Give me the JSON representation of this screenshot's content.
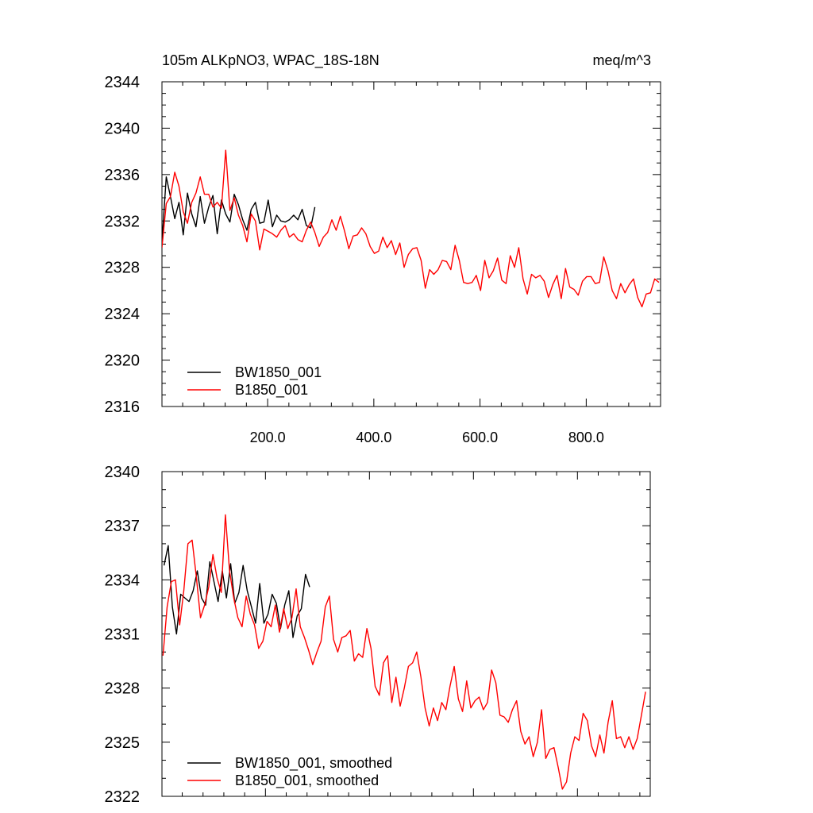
{
  "figure": {
    "title_left": "105m ALKpNO3, WPAC_18S-18N",
    "title_right": "meq/m^3"
  },
  "colors": {
    "BW1850_001": "#000000",
    "B1850_001": "#ff0000"
  },
  "chart_data": [
    {
      "type": "line",
      "title": "105m ALKpNO3, WPAC_18S-18N",
      "units": "meq/m^3",
      "xlim": [
        1,
        940
      ],
      "ylim": [
        2316,
        2344
      ],
      "xticks": [
        200,
        400,
        600,
        800
      ],
      "xtick_labels": [
        "200.0",
        "400.0",
        "600.0",
        "800.0"
      ],
      "yticks": [
        2316,
        2320,
        2324,
        2328,
        2332,
        2336,
        2340,
        2344
      ],
      "ytick_labels": [
        "2316",
        "2320",
        "2324",
        "2328",
        "2332",
        "2336",
        "2340",
        "2344"
      ],
      "legend_position": "bottom-left",
      "series": [
        {
          "name": "BW1850_001",
          "color": "#000000",
          "x_start": 1,
          "x_step": 8,
          "values": [
            2330.2,
            2335.8,
            2334.1,
            2332.2,
            2333.6,
            2330.8,
            2334.4,
            2332.6,
            2331.5,
            2334.1,
            2331.8,
            2333.2,
            2334.2,
            2330.9,
            2333.8,
            2332.6,
            2331.9,
            2334.3,
            2333.4,
            2332.1,
            2331.2,
            2333.0,
            2333.6,
            2331.8,
            2331.9,
            2333.8,
            2331.5,
            2332.5,
            2332.0,
            2331.9,
            2332.1,
            2332.5,
            2332.1,
            2333.0,
            2331.6,
            2331.4,
            2333.2
          ]
        },
        {
          "name": "B1850_001",
          "color": "#ff0000",
          "x_start": 1,
          "x_step": 8,
          "values": [
            2329.7,
            2333.5,
            2334.1,
            2336.2,
            2335.0,
            2332.8,
            2331.8,
            2333.6,
            2334.4,
            2335.8,
            2334.3,
            2334.3,
            2333.2,
            2333.6,
            2333.1,
            2338.1,
            2332.9,
            2334.0,
            2332.5,
            2331.6,
            2330.2,
            2332.6,
            2332.0,
            2329.5,
            2331.3,
            2331.1,
            2330.9,
            2330.6,
            2331.2,
            2331.6,
            2330.6,
            2330.9,
            2330.4,
            2330.2,
            2331.2,
            2331.9,
            2331.0,
            2329.8,
            2330.6,
            2331.0,
            2332.1,
            2331.2,
            2332.4,
            2331.1,
            2329.6,
            2330.7,
            2330.8,
            2331.4,
            2330.9,
            2329.8,
            2329.2,
            2329.4,
            2330.6,
            2329.7,
            2330.3,
            2329.1,
            2330.1,
            2328.0,
            2329.1,
            2329.6,
            2329.7,
            2328.6,
            2326.2,
            2327.8,
            2327.4,
            2327.8,
            2328.6,
            2328.5,
            2327.8,
            2329.9,
            2328.6,
            2326.7,
            2326.6,
            2326.7,
            2327.3,
            2326.0,
            2328.6,
            2327.1,
            2327.7,
            2328.8,
            2326.9,
            2326.6,
            2329.0,
            2328.0,
            2329.7,
            2327.0,
            2325.7,
            2327.4,
            2327.1,
            2327.3,
            2326.8,
            2325.4,
            2326.5,
            2327.3,
            2325.3,
            2327.9,
            2326.3,
            2326.1,
            2325.6,
            2326.8,
            2327.2,
            2327.2,
            2326.6,
            2326.7,
            2328.9,
            2327.7,
            2326.0,
            2325.3,
            2326.6,
            2325.8,
            2326.5,
            2327.0,
            2325.4,
            2324.6,
            2325.7,
            2325.8,
            2327.0,
            2326.7
          ]
        }
      ]
    },
    {
      "type": "line",
      "title": "",
      "xlim": [
        1,
        940
      ],
      "ylim": [
        2322,
        2340
      ],
      "yticks": [
        2322,
        2325,
        2328,
        2331,
        2334,
        2337,
        2340
      ],
      "ytick_labels": [
        "2322",
        "2325",
        "2328",
        "2331",
        "2334",
        "2337",
        "2340"
      ],
      "legend_position": "bottom-left",
      "series": [
        {
          "name": "BW1850_001, smoothed",
          "color": "#000000",
          "x_start": 5,
          "x_step": 8,
          "values": [
            2334.8,
            2335.9,
            2332.5,
            2331.0,
            2333.2,
            2333.0,
            2332.8,
            2333.4,
            2334.5,
            2333.0,
            2332.6,
            2335.0,
            2333.9,
            2332.8,
            2334.5,
            2333.0,
            2334.9,
            2332.7,
            2333.3,
            2334.8,
            2333.4,
            2332.5,
            2331.6,
            2333.8,
            2331.6,
            2332.1,
            2333.2,
            2332.7,
            2331.3,
            2332.6,
            2333.4,
            2330.8,
            2332.0,
            2332.4,
            2334.3,
            2333.6
          ]
        },
        {
          "name": "B1850_001, smoothed",
          "color": "#ff0000",
          "x_start": 3,
          "x_step": 8,
          "values": [
            2329.8,
            2332.5,
            2333.9,
            2334.0,
            2331.5,
            2333.4,
            2336.0,
            2336.2,
            2334.2,
            2331.9,
            2332.6,
            2333.6,
            2335.4,
            2334.1,
            2333.3,
            2337.6,
            2334.5,
            2333.0,
            2331.9,
            2331.4,
            2333.1,
            2332.1,
            2331.5,
            2330.2,
            2330.6,
            2331.7,
            2331.4,
            2332.6,
            2331.1,
            2332.4,
            2331.3,
            2331.9,
            2333.5,
            2331.4,
            2330.8,
            2330.1,
            2329.3,
            2330.0,
            2330.6,
            2332.5,
            2333.1,
            2330.7,
            2330.0,
            2330.8,
            2330.9,
            2331.2,
            2329.5,
            2329.9,
            2329.7,
            2331.3,
            2330.2,
            2328.1,
            2327.6,
            2329.4,
            2329.8,
            2327.2,
            2328.6,
            2327.0,
            2328.0,
            2329.2,
            2329.4,
            2330.0,
            2328.6,
            2326.9,
            2325.9,
            2326.9,
            2326.2,
            2327.2,
            2326.8,
            2328.1,
            2329.2,
            2327.4,
            2326.7,
            2328.4,
            2326.9,
            2327.3,
            2327.5,
            2326.8,
            2327.2,
            2329.0,
            2328.3,
            2326.5,
            2326.4,
            2326.1,
            2326.8,
            2327.3,
            2325.6,
            2324.9,
            2325.3,
            2324.2,
            2325.0,
            2326.8,
            2324.1,
            2324.6,
            2324.7,
            2323.6,
            2322.4,
            2322.8,
            2324.4,
            2325.3,
            2325.1,
            2326.6,
            2326.2,
            2324.8,
            2324.2,
            2325.4,
            2324.4,
            2326.1,
            2327.3,
            2325.2,
            2325.3,
            2324.7,
            2325.3,
            2324.6,
            2325.2,
            2326.5,
            2327.8
          ]
        }
      ]
    }
  ]
}
